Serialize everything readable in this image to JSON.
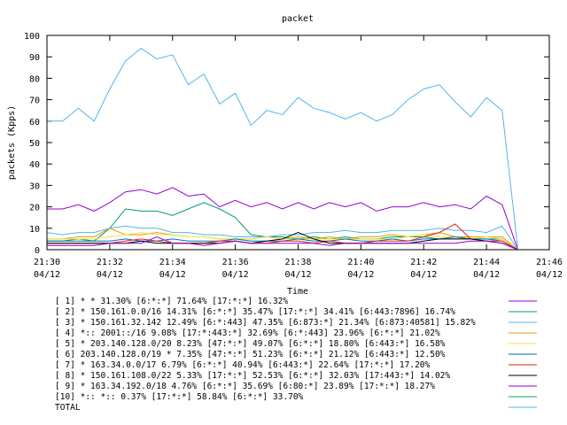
{
  "chart_data": {
    "type": "line",
    "title": "packet",
    "xlabel": "Time",
    "ylabel": "packets (Kpps)",
    "ylim": [
      0,
      100
    ],
    "yticks": [
      0,
      10,
      20,
      30,
      40,
      50,
      60,
      70,
      80,
      90,
      100
    ],
    "xticks": [
      {
        "time": "21:30",
        "date": "04/12"
      },
      {
        "time": "21:32",
        "date": "04/12"
      },
      {
        "time": "21:34",
        "date": "04/12"
      },
      {
        "time": "21:36",
        "date": "04/12"
      },
      {
        "time": "21:38",
        "date": "04/12"
      },
      {
        "time": "21:40",
        "date": "04/12"
      },
      {
        "time": "21:42",
        "date": "04/12"
      },
      {
        "time": "21:44",
        "date": "04/12"
      },
      {
        "time": "21:46",
        "date": "04/12"
      }
    ],
    "x": [
      "21:30",
      "21:30.5",
      "21:31",
      "21:31.5",
      "21:32",
      "21:32.5",
      "21:33",
      "21:33.5",
      "21:34",
      "21:34.5",
      "21:35",
      "21:35.5",
      "21:36",
      "21:36.5",
      "21:37",
      "21:37.5",
      "21:38",
      "21:38.5",
      "21:39",
      "21:39.5",
      "21:40",
      "21:40.5",
      "21:41",
      "21:41.5",
      "21:42",
      "21:42.5",
      "21:43",
      "21:43.5",
      "21:44",
      "21:44.5",
      "21:45"
    ],
    "legend_placement": "bottom",
    "series": [
      {
        "name": "[ 1] * * 31.30%  [6:*:*] 71.64% [17:*:*] 16.32%",
        "color": "#9400d3",
        "values": [
          19,
          19,
          21,
          18,
          22,
          27,
          28,
          26,
          29,
          25,
          26,
          20,
          23,
          20,
          22,
          19,
          22,
          19,
          22,
          20,
          22,
          18,
          20,
          20,
          22,
          20,
          21,
          19,
          25,
          21,
          0
        ]
      },
      {
        "name": "[ 2] * 150.161.0.0/16 14.31%  [6:*:*] 35.47% [17:*:*] 34.41% [6:443:7896] 16.74%",
        "color": "#009e73",
        "values": [
          4,
          4,
          5,
          4,
          10,
          19,
          18,
          18,
          16,
          19,
          22,
          19,
          15,
          7,
          6,
          6,
          5,
          6,
          5,
          6,
          5,
          5,
          6,
          6,
          6,
          5,
          5,
          5,
          5,
          5,
          0
        ]
      },
      {
        "name": "[ 3] * 150.161.32.142 12.49%  [6:*:443] 47.35% [6:873:*] 21.34% [6:873:40581] 15.82%",
        "color": "#56b4e9",
        "values": [
          8,
          7,
          8,
          8,
          10,
          11,
          10,
          10,
          8,
          8,
          7,
          7,
          6,
          6,
          6,
          7,
          7,
          8,
          8,
          9,
          8,
          8,
          9,
          9,
          9,
          10,
          9,
          9,
          8,
          11,
          0
        ]
      },
      {
        "name": "[ 4] *:: 2001::/16 9.08%  [17:*:443:*] 32.69% [6:*:443] 23.96% [6:*:*] 21.02%",
        "color": "#e69f00",
        "values": [
          5,
          5,
          6,
          6,
          10,
          7,
          7,
          8,
          7,
          6,
          6,
          5,
          5,
          5,
          6,
          5,
          6,
          5,
          6,
          5,
          6,
          6,
          7,
          6,
          7,
          8,
          6,
          6,
          6,
          6,
          0
        ]
      },
      {
        "name": "[ 5] * 203.140.128.0/20 8.23%  [47:*:*] 49.07% [6:*:*] 18.80% [6:443:*] 16.58%",
        "color": "#f0e442",
        "values": [
          5,
          5,
          5,
          5,
          6,
          7,
          8,
          7,
          7,
          6,
          6,
          5,
          5,
          5,
          6,
          5,
          5,
          5,
          5,
          5,
          5,
          5,
          5,
          6,
          7,
          6,
          6,
          5,
          6,
          5,
          0
        ]
      },
      {
        "name": "[ 6] 203.140.128.0/19 * 7.35%  [47:*:*] 51.23% [6:*:*] 21.12% [6:443:*] 12.50%",
        "color": "#0072b2",
        "values": [
          4,
          4,
          4,
          4,
          4,
          5,
          4,
          4,
          5,
          4,
          4,
          4,
          5,
          4,
          4,
          4,
          5,
          4,
          4,
          5,
          4,
          4,
          5,
          4,
          5,
          5,
          6,
          5,
          5,
          4,
          0
        ]
      },
      {
        "name": "[ 7] * 163.34.0.0/17 6.79%  [6:*:*] 40.94% [6:443:*] 22.64% [17:*:*] 17.20%",
        "color": "#e51e10",
        "values": [
          3,
          3,
          3,
          3,
          3,
          4,
          5,
          4,
          3,
          3,
          3,
          4,
          4,
          3,
          3,
          4,
          4,
          3,
          4,
          3,
          3,
          4,
          4,
          4,
          6,
          8,
          12,
          5,
          4,
          4,
          0
        ]
      },
      {
        "name": "[ 8] * 150.161.108.0/22 5.33%  [17:*:*] 52.53% [6:*:*] 32.03% [17:443:*] 14.02%",
        "color": "#000000",
        "values": [
          3,
          3,
          3,
          3,
          3,
          3,
          4,
          3,
          3,
          3,
          3,
          3,
          4,
          3,
          4,
          5,
          8,
          5,
          3,
          3,
          3,
          3,
          3,
          3,
          4,
          5,
          5,
          5,
          4,
          3,
          0
        ]
      },
      {
        "name": "[ 9] * 163.34.192.0/18 4.76%  [6:*:*] 35.69% [6:80:*] 23.89% [17:*:*] 18.27%",
        "color": "#9400d3",
        "values": [
          2,
          2,
          2,
          2,
          3,
          3,
          3,
          6,
          3,
          3,
          2,
          3,
          4,
          3,
          3,
          3,
          3,
          3,
          2,
          3,
          3,
          3,
          3,
          3,
          3,
          3,
          3,
          4,
          4,
          3,
          0
        ]
      },
      {
        "name": "[10] *:: *:: 0.37%  [17:*:*] 58.84% [6:*:*] 33.70%",
        "color": "#009e73",
        "values": [
          0,
          0,
          0,
          0,
          0,
          0,
          0,
          0,
          0,
          0,
          0,
          0,
          0,
          0,
          0,
          0,
          0,
          0,
          0,
          0,
          0,
          0,
          0,
          0,
          0,
          0,
          0,
          0,
          0,
          0,
          0
        ]
      },
      {
        "name": "TOTAL",
        "color": "#56b4e9",
        "values": [
          60,
          60,
          66,
          60,
          75,
          88,
          94,
          89,
          91,
          77,
          82,
          68,
          73,
          58,
          65,
          63,
          71,
          66,
          64,
          61,
          64,
          60,
          63,
          70,
          75,
          77,
          69,
          62,
          71,
          65,
          0
        ]
      }
    ]
  }
}
